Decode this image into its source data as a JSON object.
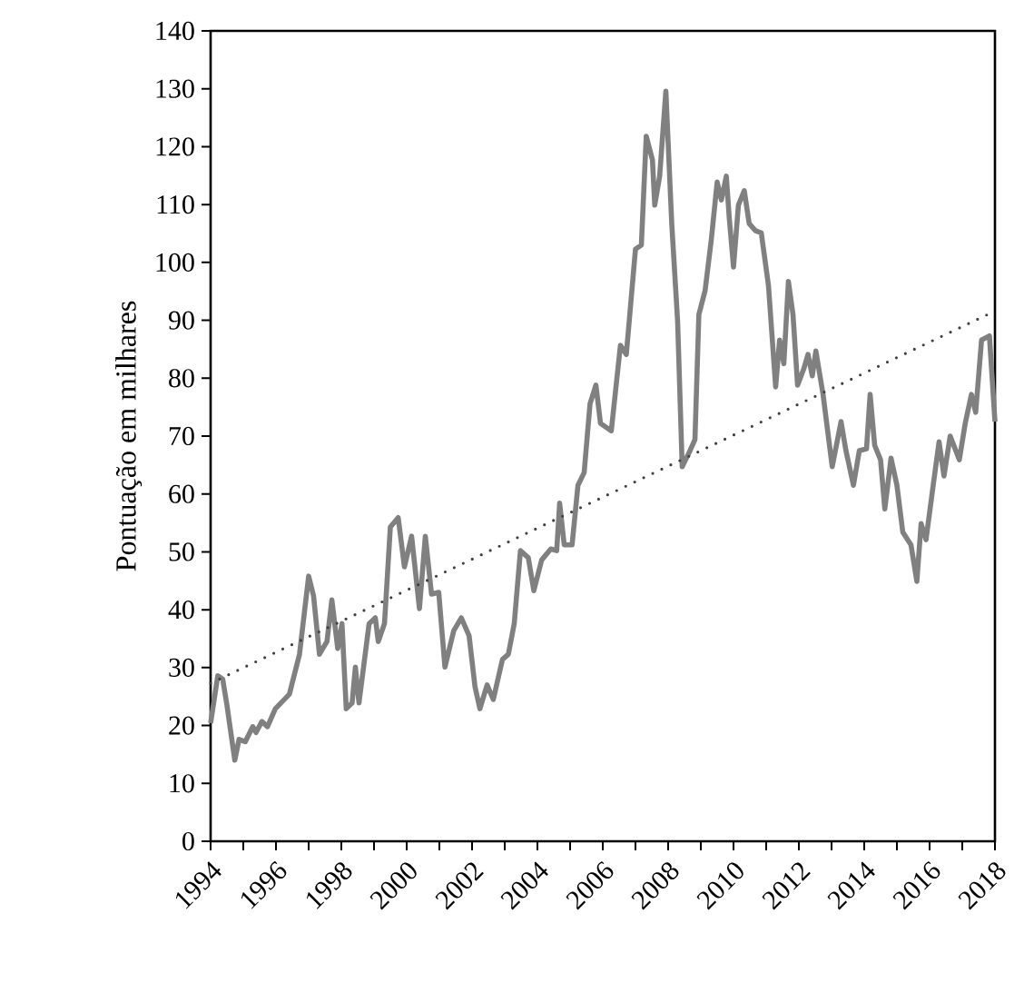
{
  "chart_data": {
    "type": "line",
    "ylabel": "Pontuação em milhares",
    "xlim": [
      1994,
      2018
    ],
    "ylim": [
      0,
      140
    ],
    "xticks": [
      1994,
      {
        "value": 1995,
        "label": null
      },
      1996,
      {
        "value": 1997,
        "label": null
      },
      1998,
      {
        "value": 1999,
        "label": null
      },
      2000,
      {
        "value": 2001,
        "label": null
      },
      2002,
      {
        "value": 2003,
        "label": null
      },
      2004,
      {
        "value": 2005,
        "label": null
      },
      2006,
      {
        "value": 2007,
        "label": null
      },
      2008,
      {
        "value": 2009,
        "label": null
      },
      2010,
      {
        "value": 2011,
        "label": null
      },
      2012,
      {
        "value": 2013,
        "label": null
      },
      2014,
      {
        "value": 2015,
        "label": null
      },
      2016,
      {
        "value": 2017,
        "label": null
      },
      2018
    ],
    "yticks": [
      0,
      10,
      20,
      30,
      40,
      50,
      60,
      70,
      80,
      90,
      100,
      110,
      120,
      130,
      140
    ],
    "marker": "none",
    "line_style": "solid",
    "series": [
      {
        "color": "#808080",
        "x": [
          1994.0,
          1994.22,
          1994.37,
          1994.5,
          1994.74,
          1994.87,
          1995.06,
          1995.29,
          1995.39,
          1995.57,
          1995.74,
          1995.98,
          1996.41,
          1996.72,
          1997.0,
          1997.15,
          1997.33,
          1997.56,
          1997.71,
          1997.89,
          1998.02,
          1998.15,
          1998.33,
          1998.43,
          1998.54,
          1998.85,
          1999.04,
          1999.13,
          1999.32,
          1999.5,
          1999.74,
          1999.93,
          2000.15,
          2000.39,
          2000.57,
          2000.76,
          2000.98,
          2001.17,
          2001.44,
          2001.67,
          2001.91,
          2002.09,
          2002.24,
          2002.46,
          2002.65,
          2002.93,
          2003.11,
          2003.29,
          2003.48,
          2003.72,
          2003.89,
          2004.13,
          2004.41,
          2004.59,
          2004.68,
          2004.82,
          2005.06,
          2005.24,
          2005.43,
          2005.61,
          2005.79,
          2005.93,
          2006.26,
          2006.54,
          2006.72,
          2007.0,
          2007.18,
          2007.33,
          2007.52,
          2007.59,
          2007.74,
          2007.93,
          2008.11,
          2008.29,
          2008.43,
          2008.67,
          2008.82,
          2008.94,
          2009.13,
          2009.32,
          2009.5,
          2009.63,
          2009.78,
          2009.87,
          2010.0,
          2010.15,
          2010.33,
          2010.48,
          2010.67,
          2010.85,
          2011.07,
          2011.29,
          2011.41,
          2011.54,
          2011.68,
          2011.82,
          2011.96,
          2012.15,
          2012.28,
          2012.41,
          2012.52,
          2012.74,
          2013.02,
          2013.29,
          2013.44,
          2013.67,
          2013.85,
          2014.07,
          2014.18,
          2014.32,
          2014.5,
          2014.63,
          2014.82,
          2015.0,
          2015.18,
          2015.43,
          2015.61,
          2015.74,
          2015.89,
          2016.11,
          2016.29,
          2016.44,
          2016.63,
          2016.91,
          2017.09,
          2017.28,
          2017.41,
          2017.59,
          2017.83,
          2018.0
        ],
        "values": [
          20.4,
          28.6,
          28.0,
          23.5,
          14.0,
          17.6,
          17.2,
          19.8,
          18.8,
          20.7,
          19.8,
          22.9,
          25.4,
          32.3,
          45.8,
          42.4,
          32.3,
          34.5,
          41.7,
          33.3,
          37.6,
          22.9,
          23.9,
          30.1,
          23.9,
          37.6,
          38.6,
          34.5,
          37.6,
          54.3,
          55.9,
          47.4,
          52.7,
          40.2,
          52.7,
          42.7,
          43.0,
          30.1,
          36.4,
          38.6,
          35.5,
          26.7,
          22.9,
          27.0,
          24.5,
          31.4,
          32.3,
          37.6,
          50.2,
          49.0,
          43.3,
          48.6,
          50.5,
          50.2,
          58.4,
          51.2,
          51.2,
          61.5,
          63.7,
          75.6,
          78.8,
          72.2,
          70.9,
          85.7,
          84.1,
          102.3,
          103.0,
          121.8,
          117.7,
          109.9,
          114.9,
          129.6,
          106.7,
          89.8,
          64.7,
          67.5,
          69.4,
          91.0,
          95.1,
          103.9,
          113.9,
          110.8,
          114.9,
          107.7,
          99.2,
          109.9,
          112.4,
          106.7,
          105.5,
          105.1,
          96.0,
          78.5,
          86.6,
          82.5,
          96.7,
          91.0,
          78.8,
          81.6,
          84.1,
          80.4,
          84.7,
          77.2,
          64.7,
          72.5,
          67.5,
          61.5,
          67.5,
          67.8,
          77.2,
          68.4,
          65.9,
          57.4,
          66.2,
          61.5,
          53.4,
          51.2,
          44.9,
          54.9,
          52.1,
          61.5,
          69.0,
          63.1,
          70.0,
          65.9,
          72.2,
          77.2,
          74.1,
          86.6,
          87.3,
          72.5
        ]
      },
      {
        "type": "line",
        "color": "#404040",
        "line_style": "dotted",
        "x": [
          1994,
          2018
        ],
        "values": [
          27.3,
          91.6
        ]
      }
    ]
  }
}
